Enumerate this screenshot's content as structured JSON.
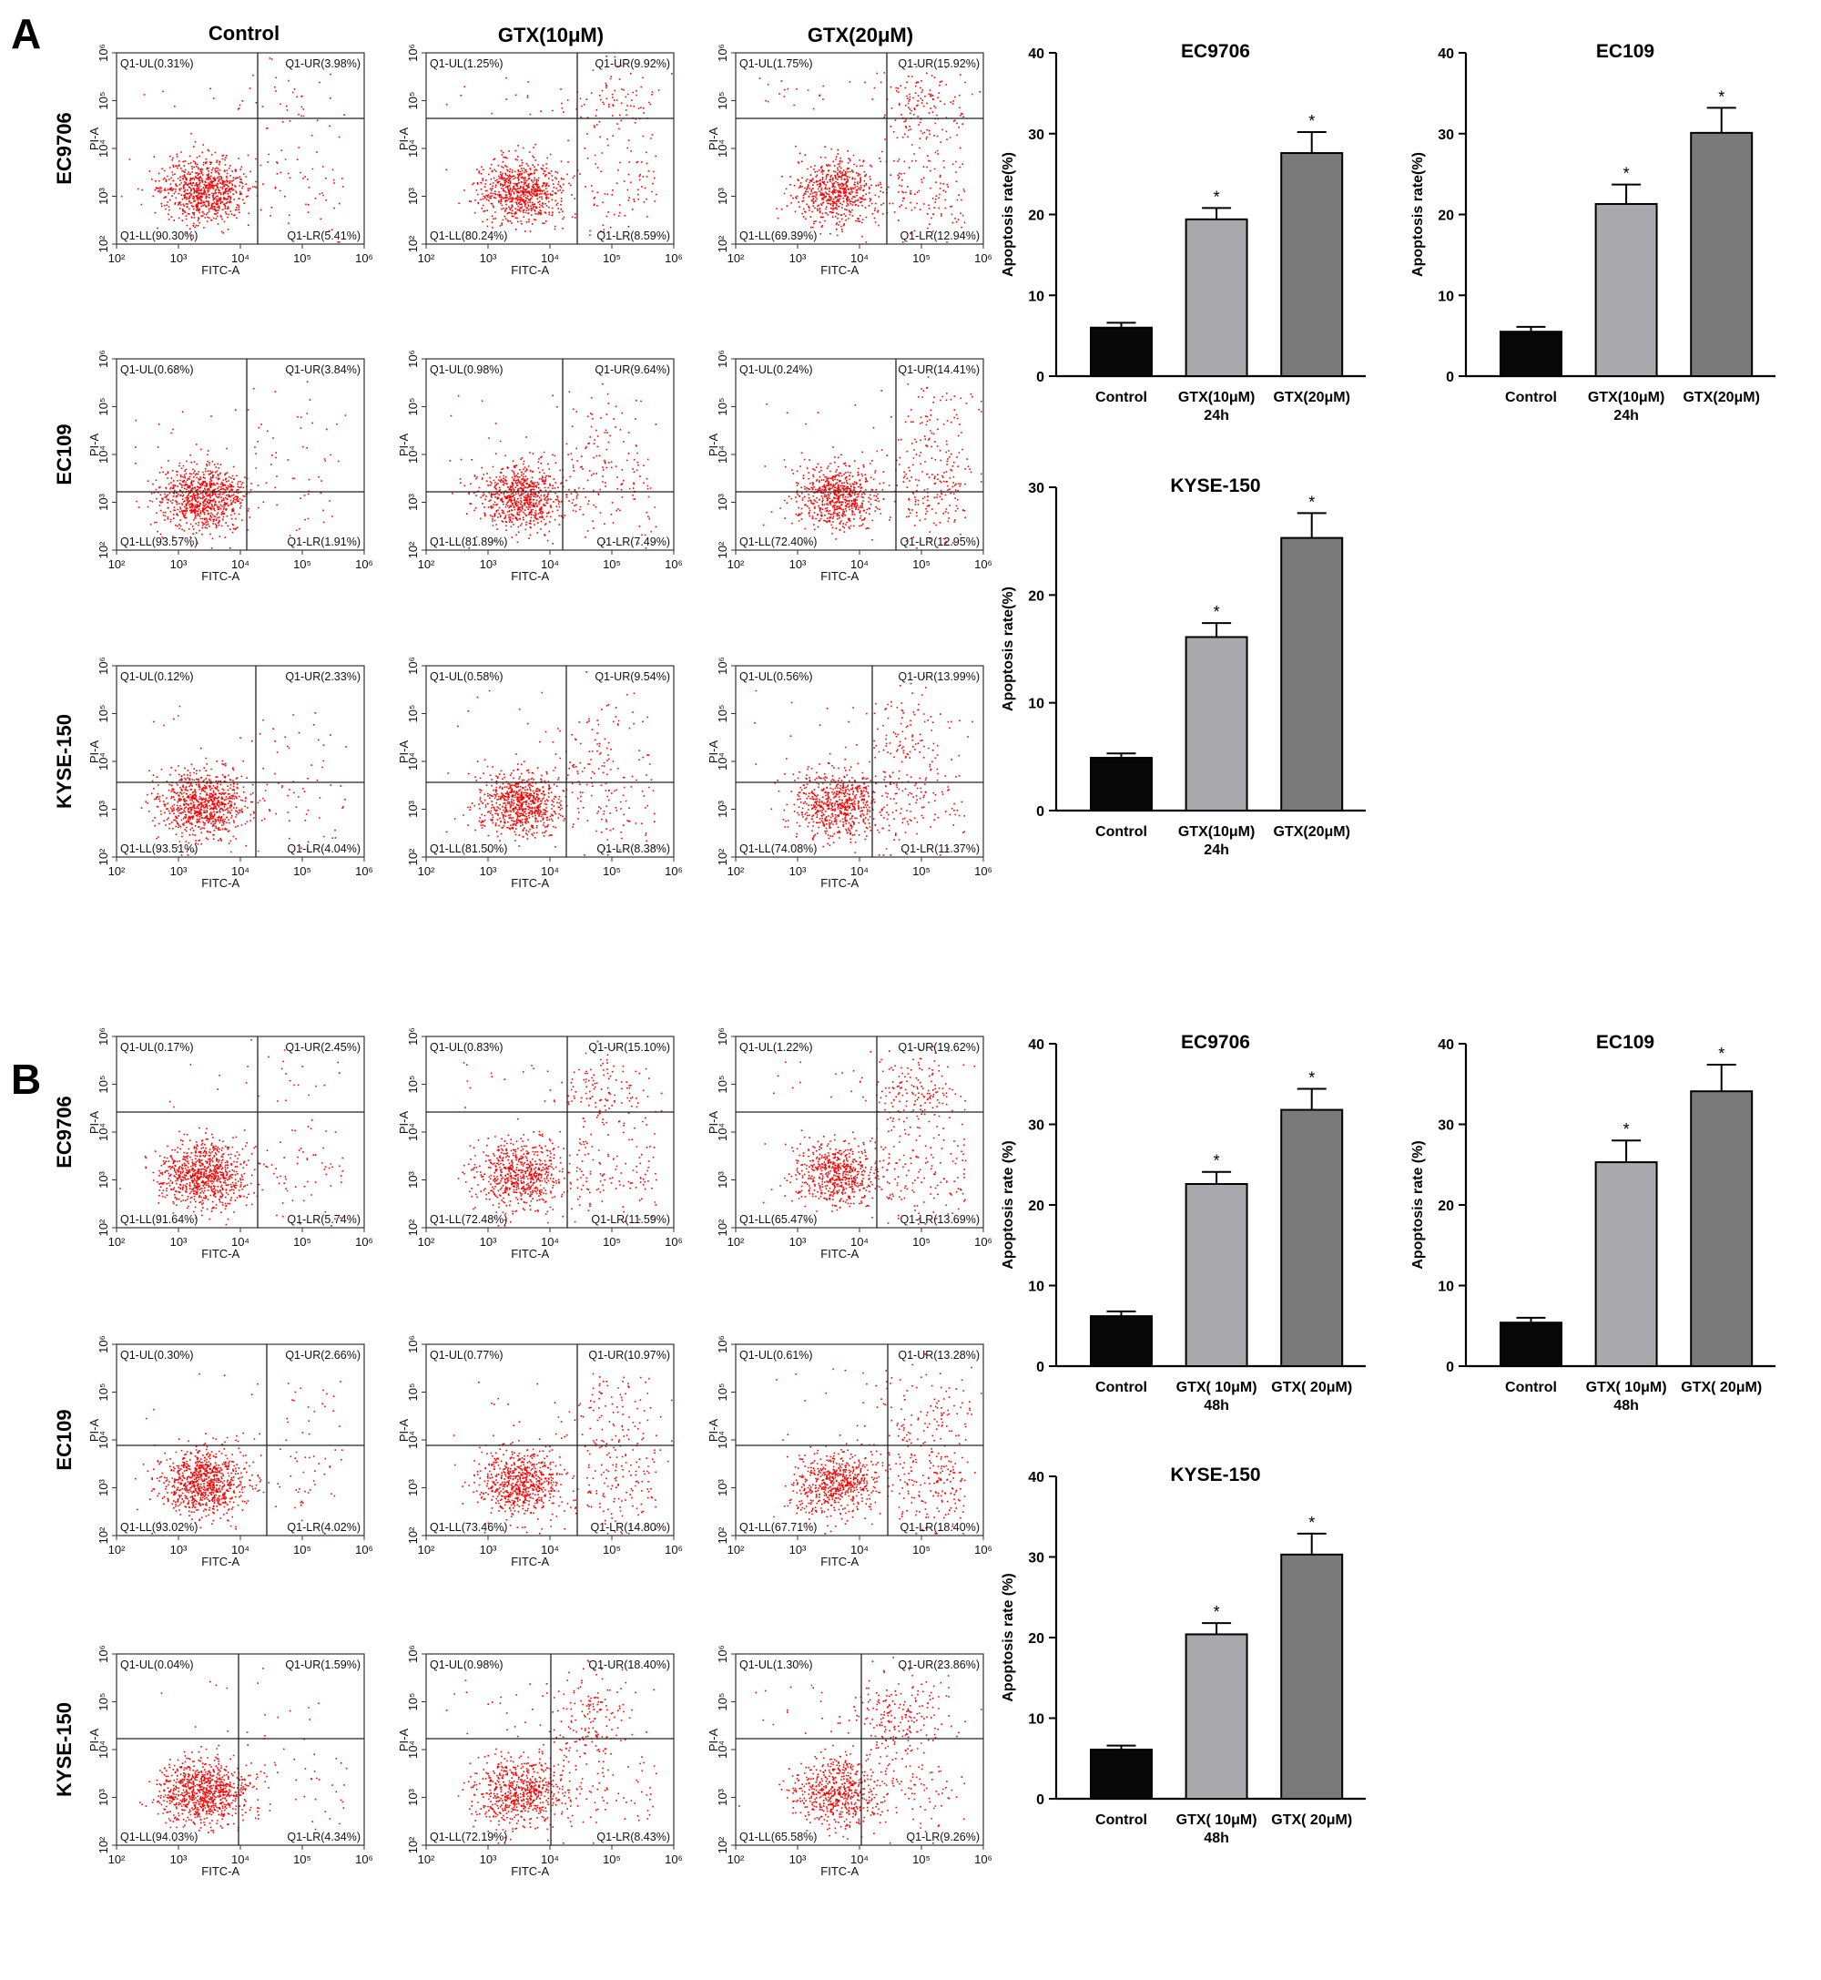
{
  "panels": [
    {
      "letter": "A",
      "columns": [
        "Control",
        "GTX(10μM)",
        "GTX(20μM)"
      ],
      "rows": [
        "EC9706",
        "EC109",
        "KYSE-150"
      ],
      "flow": [
        [
          {
            "UL": "Q1-UL(0.31%)",
            "UR": "Q1-UR(3.98%)",
            "LL": "Q1-LL(90.30%)",
            "LR": "Q1-LR(5.41%)"
          },
          {
            "UL": "Q1-UL(1.25%)",
            "UR": "Q1-UR(9.92%)",
            "LL": "Q1-LL(80.24%)",
            "LR": "Q1-LR(8.59%)"
          },
          {
            "UL": "Q1-UL(1.75%)",
            "UR": "Q1-UR(15.92%)",
            "LL": "Q1-LL(69.39%)",
            "LR": "Q1-LR(12.94%)"
          }
        ],
        [
          {
            "UL": "Q1-UL(0.68%)",
            "UR": "Q1-UR(3.84%)",
            "LL": "Q1-LL(93.57%)",
            "LR": "Q1-LR(1.91%)"
          },
          {
            "UL": "Q1-UL(0.98%)",
            "UR": "Q1-UR(9.64%)",
            "LL": "Q1-LL(81.89%)",
            "LR": "Q1-LR(7.49%)"
          },
          {
            "UL": "Q1-UL(0.24%)",
            "UR": "Q1-UR(14.41%)",
            "LL": "Q1-LL(72.40%)",
            "LR": "Q1-LR(12.95%)"
          }
        ],
        [
          {
            "UL": "Q1-UL(0.12%)",
            "UR": "Q1-UR(2.33%)",
            "LL": "Q1-LL(93.51%)",
            "LR": "Q1-LR(4.04%)"
          },
          {
            "UL": "Q1-UL(0.58%)",
            "UR": "Q1-UR(9.54%)",
            "LL": "Q1-LL(81.50%)",
            "LR": "Q1-LR(8.38%)"
          },
          {
            "UL": "Q1-UL(0.56%)",
            "UR": "Q1-UR(13.99%)",
            "LL": "Q1-LL(74.08%)",
            "LR": "Q1-LR(11.37%)"
          }
        ]
      ]
    },
    {
      "letter": "B",
      "columns": [],
      "rows": [
        "EC9706",
        "EC109",
        "KYSE-150"
      ],
      "flow": [
        [
          {
            "UL": "Q1-UL(0.17%)",
            "UR": "Q1-UR(2.45%)",
            "LL": "Q1-LL(91.64%)",
            "LR": "Q1-LR(5.74%)"
          },
          {
            "UL": "Q1-UL(0.83%)",
            "UR": "Q1-UR(15.10%)",
            "LL": "Q1-LL(72.48%)",
            "LR": "Q1-LR(11.59%)"
          },
          {
            "UL": "Q1-UL(1.22%)",
            "UR": "Q1-UR(19.62%)",
            "LL": "Q1-LL(65.47%)",
            "LR": "Q1-LR(13.69%)"
          }
        ],
        [
          {
            "UL": "Q1-UL(0.30%)",
            "UR": "Q1-UR(2.66%)",
            "LL": "Q1-LL(93.02%)",
            "LR": "Q1-LR(4.02%)"
          },
          {
            "UL": "Q1-UL(0.77%)",
            "UR": "Q1-UR(10.97%)",
            "LL": "Q1-LL(73.46%)",
            "LR": "Q1-LR(14.80%)"
          },
          {
            "UL": "Q1-UL(0.61%)",
            "UR": "Q1-UR(13.28%)",
            "LL": "Q1-LL(67.71%)",
            "LR": "Q1-LR(18.40%)"
          }
        ],
        [
          {
            "UL": "Q1-UL(0.04%)",
            "UR": "Q1-UR(1.59%)",
            "LL": "Q1-LL(94.03%)",
            "LR": "Q1-LR(4.34%)"
          },
          {
            "UL": "Q1-UL(0.98%)",
            "UR": "Q1-UR(18.40%)",
            "LL": "Q1-LL(72.19%)",
            "LR": "Q1-LR(8.43%)"
          },
          {
            "UL": "Q1-UL(1.30%)",
            "UR": "Q1-UR(23.86%)",
            "LL": "Q1-LL(65.58%)",
            "LR": "Q1-LR(9.26%)"
          }
        ]
      ]
    }
  ],
  "flow_axes": {
    "xlabel": "FITC-A",
    "ylabel": "PI-A",
    "ticks": [
      "10²",
      "10³",
      "10⁴",
      "10⁵",
      "10⁶"
    ],
    "point_color": "#ff0000"
  },
  "chart_data": [
    {
      "type": "bar",
      "title": "EC9706",
      "ylabel": "Apoptosis rate(%)",
      "xgroup_label": "24h",
      "categories": [
        "Control",
        "GTX(10μM)",
        "GTX(20μM)"
      ],
      "values": [
        6.0,
        19.4,
        27.6
      ],
      "errors": [
        0.6,
        1.4,
        2.6
      ],
      "significance": [
        "",
        "*",
        "*"
      ],
      "ylim": [
        0,
        40
      ],
      "yticks": [
        0,
        10,
        20,
        30,
        40
      ],
      "bar_colors": [
        "#080808",
        "#a8a8ad",
        "#7a7a7a"
      ]
    },
    {
      "type": "bar",
      "title": "EC109",
      "ylabel": "Apoptosis rate(%)",
      "xgroup_label": "24h",
      "categories": [
        "Control",
        "GTX(10μM)",
        "GTX(20μM)"
      ],
      "values": [
        5.5,
        21.3,
        30.1
      ],
      "errors": [
        0.6,
        2.4,
        3.1
      ],
      "significance": [
        "",
        "*",
        "*"
      ],
      "ylim": [
        0,
        40
      ],
      "yticks": [
        0,
        10,
        20,
        30,
        40
      ],
      "bar_colors": [
        "#080808",
        "#a8a8ad",
        "#7a7a7a"
      ]
    },
    {
      "type": "bar",
      "title": "KYSE-150",
      "ylabel": "Apoptosis rate(%)",
      "xgroup_label": "24h",
      "categories": [
        "Control",
        "GTX(10μM)",
        "GTX(20μM)"
      ],
      "values": [
        4.9,
        16.1,
        25.3
      ],
      "errors": [
        0.4,
        1.3,
        2.3
      ],
      "significance": [
        "",
        "*",
        "*"
      ],
      "ylim": [
        0,
        30
      ],
      "yticks": [
        0,
        10,
        20,
        30
      ],
      "bar_colors": [
        "#080808",
        "#a8a8ad",
        "#7a7a7a"
      ]
    },
    {
      "type": "bar",
      "title": "EC9706",
      "ylabel": "Apoptosis rate (%)",
      "xgroup_label": "48h",
      "categories": [
        "Control",
        "GTX( 10μM)",
        "GTX( 20μM)"
      ],
      "values": [
        6.2,
        22.6,
        31.8
      ],
      "errors": [
        0.6,
        1.5,
        2.6
      ],
      "significance": [
        "",
        "*",
        "*"
      ],
      "ylim": [
        0,
        40
      ],
      "yticks": [
        0,
        10,
        20,
        30,
        40
      ],
      "bar_colors": [
        "#080808",
        "#a8a8ad",
        "#7a7a7a"
      ]
    },
    {
      "type": "bar",
      "title": "EC109",
      "ylabel": "Apoptosis rate (%)",
      "xgroup_label": "48h",
      "categories": [
        "Control",
        "GTX( 10μM)",
        "GTX( 20μM)"
      ],
      "values": [
        5.4,
        25.3,
        34.1
      ],
      "errors": [
        0.6,
        2.7,
        3.3
      ],
      "significance": [
        "",
        "*",
        "*"
      ],
      "ylim": [
        0,
        40
      ],
      "yticks": [
        0,
        10,
        20,
        30,
        40
      ],
      "bar_colors": [
        "#080808",
        "#a8a8ad",
        "#7a7a7a"
      ]
    },
    {
      "type": "bar",
      "title": "KYSE-150",
      "ylabel": "Apoptosis rate (%)",
      "xgroup_label": "48h",
      "categories": [
        "Control",
        "GTX( 10μM)",
        "GTX( 20μM)"
      ],
      "values": [
        6.1,
        20.4,
        30.3
      ],
      "errors": [
        0.5,
        1.4,
        2.6
      ],
      "significance": [
        "",
        "*",
        "*"
      ],
      "ylim": [
        0,
        40
      ],
      "yticks": [
        0,
        10,
        20,
        30,
        40
      ],
      "bar_colors": [
        "#080808",
        "#a8a8ad",
        "#7a7a7a"
      ]
    }
  ]
}
